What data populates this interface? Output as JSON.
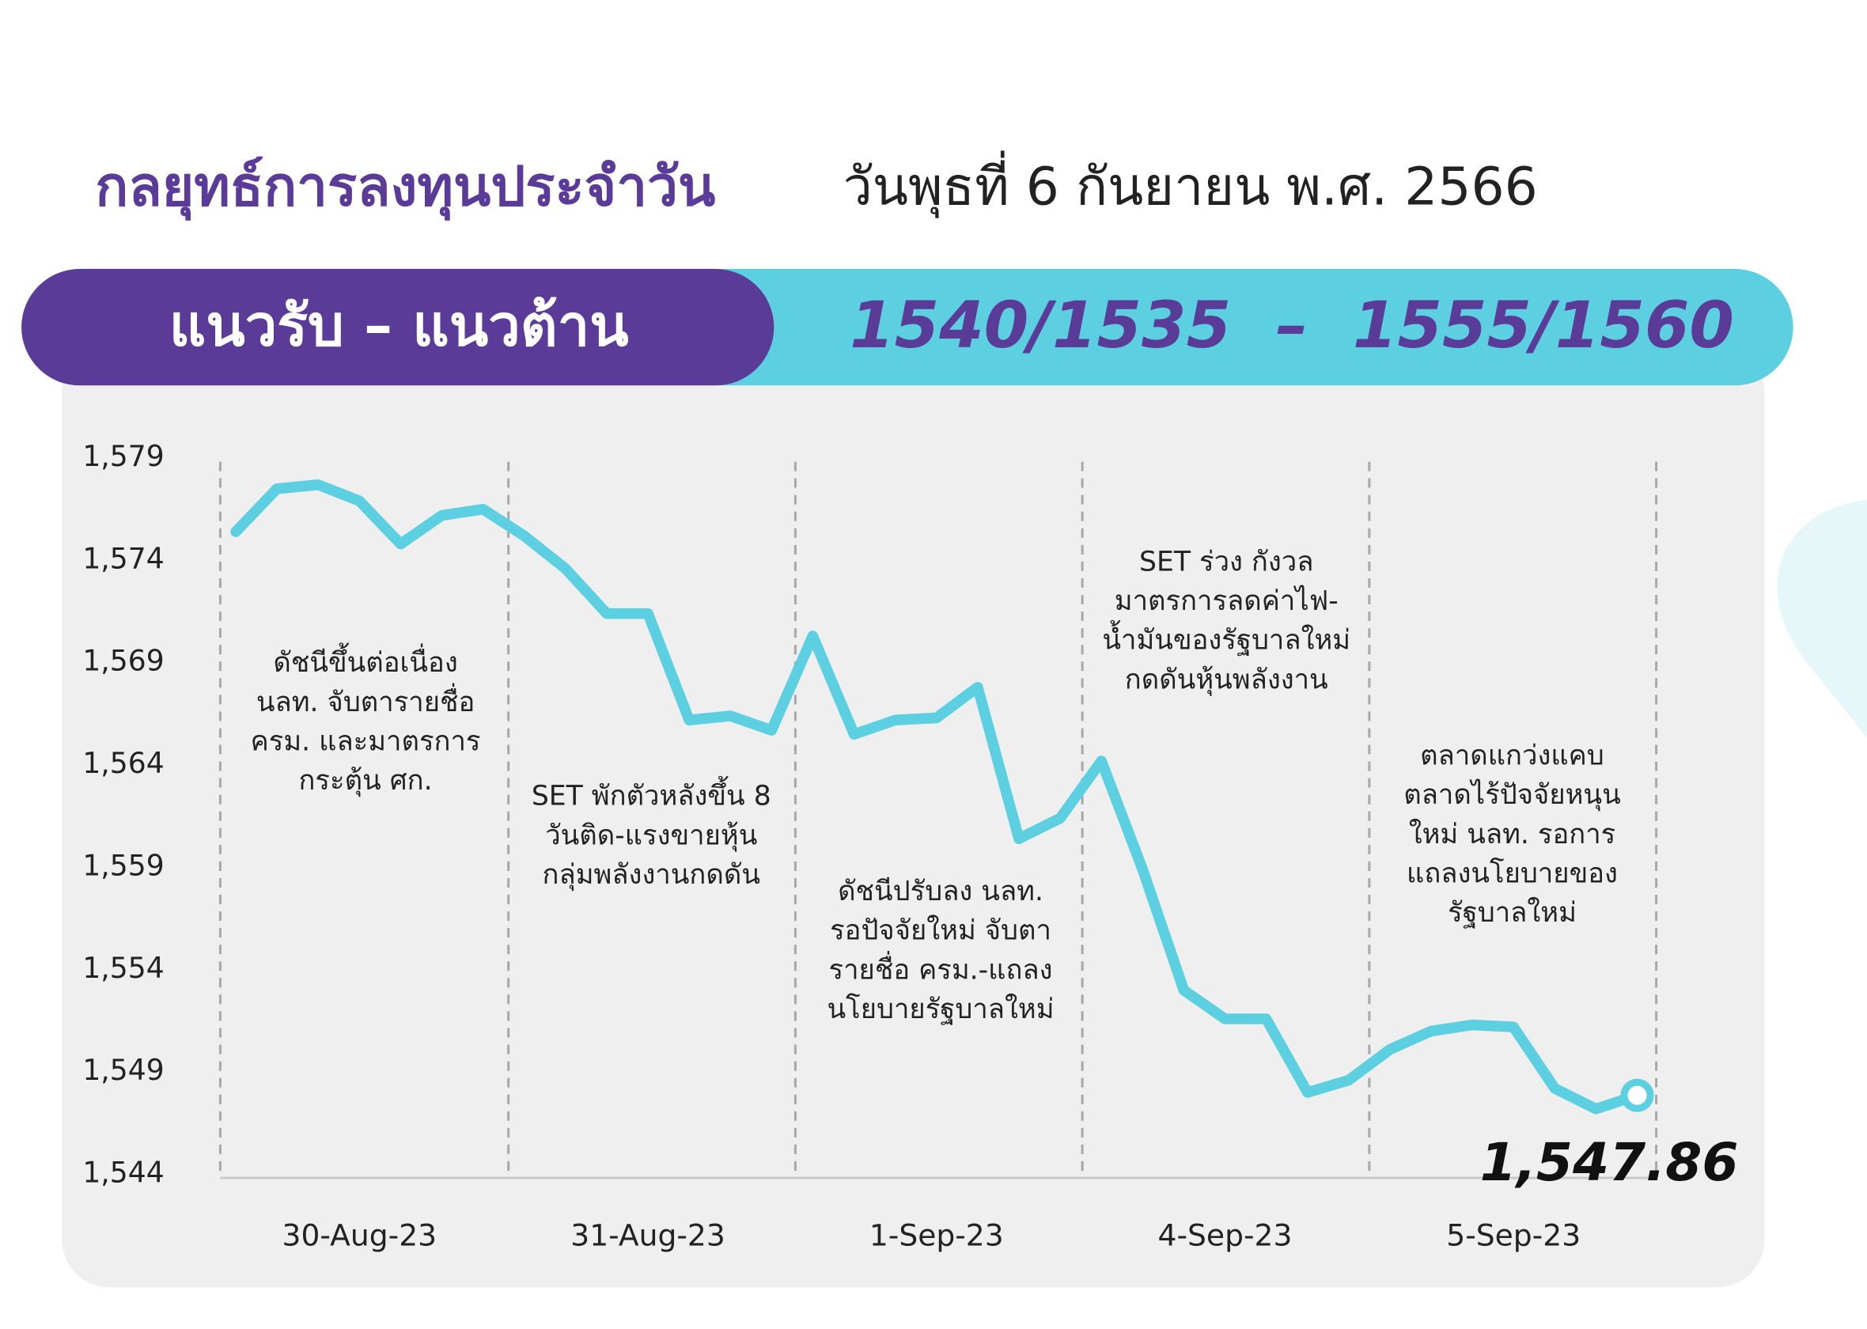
{
  "header": {
    "title": "กลยุทธ์การลงทุนประจำวัน",
    "date": "วันพุธที่ 6 กันยายน พ.ศ. 2566"
  },
  "banner": {
    "label": "แนวรับ – แนวต้าน",
    "levels": "1540/1535  –  1555/1560"
  },
  "chart_data": {
    "type": "line",
    "categories": [
      null,
      null,
      null,
      "30-Aug-23",
      null,
      null,
      null,
      null,
      null,
      null,
      "31-Aug-23",
      null,
      null,
      null,
      null,
      null,
      null,
      "1-Sep-23",
      null,
      null,
      null,
      null,
      null,
      null,
      "4-Sep-23",
      null,
      null,
      null,
      null,
      null,
      null,
      "5-Sep-23",
      null,
      null,
      null
    ],
    "values": [
      1575.4,
      1577.5,
      1577.7,
      1576.9,
      1574.8,
      1576.2,
      1576.5,
      1575.2,
      1573.6,
      1571.4,
      1571.4,
      1566.2,
      1566.4,
      1565.7,
      1570.3,
      1565.5,
      1566.2,
      1566.3,
      1567.8,
      1560.4,
      1561.4,
      1564.2,
      1558.9,
      1553.0,
      1551.6,
      1551.6,
      1548.0,
      1548.6,
      1550.1,
      1551.0,
      1551.3,
      1551.2,
      1548.2,
      1547.2,
      1547.86
    ],
    "value_labels": [
      null,
      null,
      null,
      null,
      null,
      null,
      null,
      null,
      null,
      null,
      null,
      null,
      null,
      null,
      null,
      null,
      null,
      null,
      null,
      null,
      null,
      null,
      null,
      null,
      null,
      null,
      null,
      null,
      null,
      null,
      null,
      null,
      null,
      null,
      "1,547.86"
    ],
    "color": "#5ccfe0",
    "ylim": [
      1544,
      1579
    ],
    "yticks": [
      {
        "value": 1579,
        "label": "1,579"
      },
      {
        "value": 1574,
        "label": "1,574"
      },
      {
        "value": 1569,
        "label": "1,569"
      },
      {
        "value": 1564,
        "label": "1,564"
      },
      {
        "value": 1559,
        "label": "1,559"
      },
      {
        "value": 1554,
        "label": "1,554"
      },
      {
        "value": 1549,
        "label": "1,549"
      },
      {
        "value": 1544,
        "label": "1,544"
      }
    ],
    "annotations": [
      [
        "ดัชนีขึ้นต่อเนื่อง",
        "นลท. จับตารายชื่อ",
        "ครม. และมาตรการ",
        "กระตุ้น ศก."
      ],
      [
        "SET พักตัวหลังขึ้น 8",
        "วันติด-แรงขายหุ้น",
        "กลุ่มพลังงานกดดัน"
      ],
      [
        "ดัชนีปรับลง นลท.",
        "รอปัจจัยใหม่ จับตา",
        "รายชื่อ ครม.-แถลง",
        "นโยบายรัฐบาลใหม่"
      ],
      [
        "SET ร่วง กังวล",
        "มาตรการลดค่าไฟ-",
        "น้ำมันของรัฐบาลใหม่",
        "กดดันหุ้นพลังงาน"
      ],
      [
        "ตลาดแกว่งแคบ",
        "ตลาดไร้ปัจจัยหนุน",
        "ใหม่ นลท. รอการ",
        "แถลงนโยบายของ",
        "รัฐบาลใหม่"
      ]
    ]
  }
}
